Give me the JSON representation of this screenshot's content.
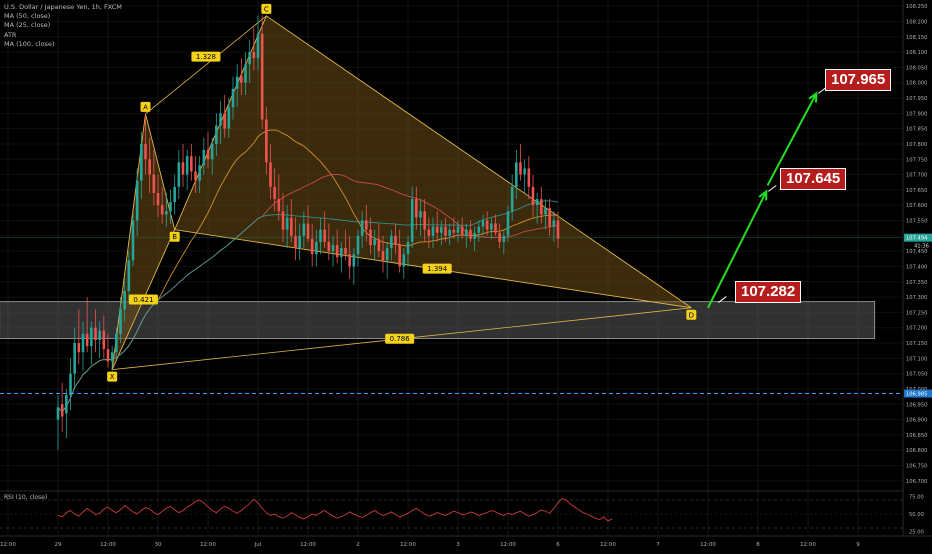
{
  "legend": {
    "symbol": "U.S. Dollar / Japanese Yen, 1h, FXCM",
    "ma50": "MA (50, close)",
    "ma25": "MA (25, close)",
    "atr": "ATR",
    "ma100": "MA (100, close)"
  },
  "rsi_label": "RSI (10, close)",
  "colors": {
    "background": "#000000",
    "bull": "#26a69a",
    "bear": "#ef5350",
    "pattern_stroke": "#e0b84a",
    "pattern_fill": "#6b4e16",
    "projection_arrow": "#22e022",
    "callout": "#b71c1c",
    "support_line": "#3aa0ff",
    "rsi_line": "#e04040",
    "zone_fill": "#5a5a5a"
  },
  "callouts": [
    {
      "name": "target-callout-107-965",
      "text": "107.965"
    },
    {
      "name": "target-callout-107-645",
      "text": "107.645"
    },
    {
      "name": "target-callout-107-282",
      "text": "107.282"
    }
  ],
  "chart_data": {
    "type": "candlestick",
    "title": "U.S. Dollar / Japanese Yen, 1h, FXCM",
    "y_ticks": [
      "108.250",
      "108.200",
      "108.150",
      "108.100",
      "108.050",
      "108.000",
      "107.950",
      "107.900",
      "107.850",
      "107.800",
      "107.750",
      "107.700",
      "107.650",
      "107.600",
      "107.550",
      "107.500",
      "107.450",
      "107.400",
      "107.350",
      "107.300",
      "107.250",
      "107.200",
      "107.150",
      "107.100",
      "107.050",
      "107.000",
      "106.950",
      "106.900",
      "106.850",
      "106.800",
      "106.750",
      "106.700"
    ],
    "ylim": [
      106.67,
      108.27
    ],
    "x_ticks": [
      {
        "label": "12:00",
        "t": -12
      },
      {
        "label": "29",
        "t": 0
      },
      {
        "label": "12:00",
        "t": 12
      },
      {
        "label": "30",
        "t": 24
      },
      {
        "label": "12:00",
        "t": 36
      },
      {
        "label": "Jul",
        "t": 48
      },
      {
        "label": "12:00",
        "t": 60
      },
      {
        "label": "2",
        "t": 72
      },
      {
        "label": "12:00",
        "t": 84
      },
      {
        "label": "3",
        "t": 96
      },
      {
        "label": "12:00",
        "t": 108
      },
      {
        "label": "6",
        "t": 120
      },
      {
        "label": "12:00",
        "t": 132
      },
      {
        "label": "7",
        "t": 144
      },
      {
        "label": "12:00",
        "t": 156
      },
      {
        "label": "8",
        "t": 168
      },
      {
        "label": "12:00",
        "t": 180
      },
      {
        "label": "9",
        "t": 192
      }
    ],
    "last_price": "107.494",
    "countdown": "41:36",
    "support_level": "106.985",
    "harmonic_pattern": {
      "points": [
        {
          "label": "X",
          "t": 13,
          "price": 107.063
        },
        {
          "label": "A",
          "t": 21,
          "price": 107.898
        },
        {
          "label": "B",
          "t": 28,
          "price": 107.52
        },
        {
          "label": "C",
          "t": 50,
          "price": 108.218
        },
        {
          "label": "D",
          "t": 152,
          "price": 107.265
        }
      ],
      "ratios": [
        {
          "label": "1.328",
          "t": 35.5,
          "price": 108.085
        },
        {
          "label": "0.421",
          "t": 20.5,
          "price": 107.292
        },
        {
          "label": "1.394",
          "t": 91,
          "price": 107.393
        },
        {
          "label": "0.786",
          "t": 82,
          "price": 107.164
        }
      ]
    },
    "zone": {
      "t_start": -14,
      "t_end": 196,
      "top": 107.285,
      "bottom": 107.165
    },
    "projection": [
      {
        "t": 157,
        "price": 107.282
      },
      {
        "t": 170,
        "price": 107.645
      },
      {
        "t": 182,
        "price": 107.965
      }
    ],
    "rsi": {
      "ylim": [
        20,
        80
      ],
      "ticks": [
        "75.00",
        "50.00",
        "25.00"
      ],
      "levels": [
        70,
        30
      ],
      "values": [
        48,
        46,
        52,
        55,
        50,
        47,
        53,
        58,
        54,
        49,
        51,
        57,
        60,
        55,
        52,
        56,
        62,
        58,
        53,
        50,
        55,
        59,
        57,
        52,
        49,
        54,
        58,
        61,
        56,
        52,
        55,
        60,
        63,
        68,
        70,
        66,
        60,
        55,
        52,
        57,
        61,
        58,
        54,
        51,
        55,
        60,
        65,
        71,
        66,
        58,
        52,
        48,
        50,
        46,
        44,
        47,
        52,
        49,
        45,
        43,
        46,
        50,
        48,
        52,
        55,
        51,
        47,
        44,
        46,
        49,
        53,
        50,
        47,
        45,
        48,
        52,
        55,
        51,
        48,
        50,
        53,
        49,
        46,
        48,
        51,
        55,
        58,
        54,
        50,
        47,
        49,
        52,
        50,
        48,
        51,
        54,
        52,
        49,
        50,
        53,
        51,
        48,
        50,
        52,
        55,
        53,
        50,
        48,
        51,
        49,
        52,
        54,
        50,
        47,
        49,
        52,
        56,
        54,
        51,
        58,
        66,
        72,
        70,
        64,
        60,
        56,
        52,
        50,
        47,
        44,
        42,
        46,
        40,
        43
      ]
    },
    "candles": [
      {
        "o": 106.9,
        "h": 106.98,
        "l": 106.8,
        "c": 106.94
      },
      {
        "o": 106.95,
        "h": 107.02,
        "l": 106.86,
        "c": 106.91
      },
      {
        "o": 106.92,
        "h": 107.0,
        "l": 106.84,
        "c": 106.98
      },
      {
        "o": 106.98,
        "h": 107.1,
        "l": 106.93,
        "c": 107.05
      },
      {
        "o": 107.05,
        "h": 107.2,
        "l": 107.0,
        "c": 107.15
      },
      {
        "o": 107.15,
        "h": 107.26,
        "l": 107.08,
        "c": 107.12
      },
      {
        "o": 107.12,
        "h": 107.22,
        "l": 107.06,
        "c": 107.18
      },
      {
        "o": 107.18,
        "h": 107.3,
        "l": 107.12,
        "c": 107.14
      },
      {
        "o": 107.14,
        "h": 107.22,
        "l": 107.08,
        "c": 107.2
      },
      {
        "o": 107.2,
        "h": 107.26,
        "l": 107.12,
        "c": 107.16
      },
      {
        "o": 107.16,
        "h": 107.22,
        "l": 107.1,
        "c": 107.19
      },
      {
        "o": 107.19,
        "h": 107.24,
        "l": 107.1,
        "c": 107.13
      },
      {
        "o": 107.13,
        "h": 107.18,
        "l": 107.07,
        "c": 107.09
      },
      {
        "o": 107.09,
        "h": 107.14,
        "l": 107.06,
        "c": 107.12
      },
      {
        "o": 107.12,
        "h": 107.2,
        "l": 107.1,
        "c": 107.18
      },
      {
        "o": 107.18,
        "h": 107.3,
        "l": 107.15,
        "c": 107.26
      },
      {
        "o": 107.26,
        "h": 107.36,
        "l": 107.22,
        "c": 107.32
      },
      {
        "o": 107.32,
        "h": 107.45,
        "l": 107.28,
        "c": 107.42
      },
      {
        "o": 107.42,
        "h": 107.58,
        "l": 107.4,
        "c": 107.55
      },
      {
        "o": 107.55,
        "h": 107.72,
        "l": 107.5,
        "c": 107.68
      },
      {
        "o": 107.68,
        "h": 107.84,
        "l": 107.62,
        "c": 107.8
      },
      {
        "o": 107.8,
        "h": 107.9,
        "l": 107.7,
        "c": 107.75
      },
      {
        "o": 107.75,
        "h": 107.82,
        "l": 107.64,
        "c": 107.7
      },
      {
        "o": 107.7,
        "h": 107.78,
        "l": 107.6,
        "c": 107.64
      },
      {
        "o": 107.64,
        "h": 107.7,
        "l": 107.56,
        "c": 107.6
      },
      {
        "o": 107.6,
        "h": 107.66,
        "l": 107.54,
        "c": 107.57
      },
      {
        "o": 107.57,
        "h": 107.64,
        "l": 107.53,
        "c": 107.58
      },
      {
        "o": 107.58,
        "h": 107.65,
        "l": 107.54,
        "c": 107.61
      },
      {
        "o": 107.61,
        "h": 107.7,
        "l": 107.57,
        "c": 107.66
      },
      {
        "o": 107.66,
        "h": 107.78,
        "l": 107.62,
        "c": 107.74
      },
      {
        "o": 107.74,
        "h": 107.8,
        "l": 107.66,
        "c": 107.7
      },
      {
        "o": 107.7,
        "h": 107.78,
        "l": 107.65,
        "c": 107.76
      },
      {
        "o": 107.76,
        "h": 107.8,
        "l": 107.68,
        "c": 107.71
      },
      {
        "o": 107.71,
        "h": 107.76,
        "l": 107.64,
        "c": 107.68
      },
      {
        "o": 107.68,
        "h": 107.76,
        "l": 107.64,
        "c": 107.73
      },
      {
        "o": 107.73,
        "h": 107.82,
        "l": 107.7,
        "c": 107.78
      },
      {
        "o": 107.78,
        "h": 107.84,
        "l": 107.72,
        "c": 107.75
      },
      {
        "o": 107.75,
        "h": 107.82,
        "l": 107.7,
        "c": 107.8
      },
      {
        "o": 107.8,
        "h": 107.9,
        "l": 107.76,
        "c": 107.86
      },
      {
        "o": 107.86,
        "h": 107.94,
        "l": 107.8,
        "c": 107.9
      },
      {
        "o": 107.9,
        "h": 107.96,
        "l": 107.82,
        "c": 107.85
      },
      {
        "o": 107.85,
        "h": 107.95,
        "l": 107.82,
        "c": 107.92
      },
      {
        "o": 107.92,
        "h": 108.02,
        "l": 107.88,
        "c": 107.98
      },
      {
        "o": 107.98,
        "h": 108.06,
        "l": 107.92,
        "c": 108.02
      },
      {
        "o": 108.02,
        "h": 108.08,
        "l": 107.96,
        "c": 108.0
      },
      {
        "o": 108.0,
        "h": 108.1,
        "l": 107.96,
        "c": 108.06
      },
      {
        "o": 108.06,
        "h": 108.14,
        "l": 108.0,
        "c": 108.1
      },
      {
        "o": 108.1,
        "h": 108.18,
        "l": 108.04,
        "c": 108.08
      },
      {
        "o": 108.08,
        "h": 108.22,
        "l": 108.04,
        "c": 108.16
      },
      {
        "o": 108.16,
        "h": 108.22,
        "l": 107.85,
        "c": 107.88
      },
      {
        "o": 107.88,
        "h": 107.92,
        "l": 107.7,
        "c": 107.74
      },
      {
        "o": 107.74,
        "h": 107.8,
        "l": 107.62,
        "c": 107.66
      },
      {
        "o": 107.66,
        "h": 107.72,
        "l": 107.58,
        "c": 107.62
      },
      {
        "o": 107.62,
        "h": 107.7,
        "l": 107.55,
        "c": 107.58
      },
      {
        "o": 107.58,
        "h": 107.64,
        "l": 107.48,
        "c": 107.52
      },
      {
        "o": 107.52,
        "h": 107.6,
        "l": 107.46,
        "c": 107.56
      },
      {
        "o": 107.56,
        "h": 107.62,
        "l": 107.48,
        "c": 107.5
      },
      {
        "o": 107.5,
        "h": 107.56,
        "l": 107.42,
        "c": 107.46
      },
      {
        "o": 107.46,
        "h": 107.54,
        "l": 107.42,
        "c": 107.5
      },
      {
        "o": 107.5,
        "h": 107.58,
        "l": 107.46,
        "c": 107.54
      },
      {
        "o": 107.54,
        "h": 107.6,
        "l": 107.48,
        "c": 107.49
      },
      {
        "o": 107.49,
        "h": 107.54,
        "l": 107.4,
        "c": 107.44
      },
      {
        "o": 107.44,
        "h": 107.52,
        "l": 107.4,
        "c": 107.48
      },
      {
        "o": 107.48,
        "h": 107.56,
        "l": 107.44,
        "c": 107.52
      },
      {
        "o": 107.52,
        "h": 107.58,
        "l": 107.46,
        "c": 107.48
      },
      {
        "o": 107.48,
        "h": 107.54,
        "l": 107.42,
        "c": 107.45
      },
      {
        "o": 107.45,
        "h": 107.5,
        "l": 107.4,
        "c": 107.47
      },
      {
        "o": 107.47,
        "h": 107.52,
        "l": 107.41,
        "c": 107.43
      },
      {
        "o": 107.43,
        "h": 107.48,
        "l": 107.38,
        "c": 107.46
      },
      {
        "o": 107.46,
        "h": 107.52,
        "l": 107.42,
        "c": 107.44
      },
      {
        "o": 107.44,
        "h": 107.5,
        "l": 107.36,
        "c": 107.4
      },
      {
        "o": 107.4,
        "h": 107.46,
        "l": 107.34,
        "c": 107.44
      },
      {
        "o": 107.44,
        "h": 107.52,
        "l": 107.4,
        "c": 107.5
      },
      {
        "o": 107.5,
        "h": 107.58,
        "l": 107.46,
        "c": 107.55
      },
      {
        "o": 107.55,
        "h": 107.6,
        "l": 107.48,
        "c": 107.52
      },
      {
        "o": 107.52,
        "h": 107.56,
        "l": 107.44,
        "c": 107.47
      },
      {
        "o": 107.47,
        "h": 107.52,
        "l": 107.42,
        "c": 107.49
      },
      {
        "o": 107.49,
        "h": 107.54,
        "l": 107.43,
        "c": 107.45
      },
      {
        "o": 107.45,
        "h": 107.5,
        "l": 107.38,
        "c": 107.42
      },
      {
        "o": 107.42,
        "h": 107.48,
        "l": 107.36,
        "c": 107.46
      },
      {
        "o": 107.46,
        "h": 107.52,
        "l": 107.42,
        "c": 107.5
      },
      {
        "o": 107.5,
        "h": 107.54,
        "l": 107.44,
        "c": 107.47
      },
      {
        "o": 107.47,
        "h": 107.52,
        "l": 107.38,
        "c": 107.4
      },
      {
        "o": 107.4,
        "h": 107.46,
        "l": 107.36,
        "c": 107.44
      },
      {
        "o": 107.44,
        "h": 107.5,
        "l": 107.4,
        "c": 107.48
      },
      {
        "o": 107.48,
        "h": 107.66,
        "l": 107.46,
        "c": 107.62
      },
      {
        "o": 107.62,
        "h": 107.66,
        "l": 107.52,
        "c": 107.56
      },
      {
        "o": 107.56,
        "h": 107.62,
        "l": 107.5,
        "c": 107.58
      },
      {
        "o": 107.58,
        "h": 107.62,
        "l": 107.48,
        "c": 107.52
      },
      {
        "o": 107.52,
        "h": 107.56,
        "l": 107.46,
        "c": 107.5
      },
      {
        "o": 107.5,
        "h": 107.56,
        "l": 107.46,
        "c": 107.53
      },
      {
        "o": 107.53,
        "h": 107.58,
        "l": 107.48,
        "c": 107.51
      },
      {
        "o": 107.51,
        "h": 107.55,
        "l": 107.47,
        "c": 107.53
      },
      {
        "o": 107.53,
        "h": 107.56,
        "l": 107.48,
        "c": 107.5
      },
      {
        "o": 107.5,
        "h": 107.54,
        "l": 107.47,
        "c": 107.52
      },
      {
        "o": 107.52,
        "h": 107.56,
        "l": 107.49,
        "c": 107.51
      },
      {
        "o": 107.51,
        "h": 107.55,
        "l": 107.48,
        "c": 107.53
      },
      {
        "o": 107.53,
        "h": 107.56,
        "l": 107.49,
        "c": 107.5
      },
      {
        "o": 107.5,
        "h": 107.54,
        "l": 107.46,
        "c": 107.52
      },
      {
        "o": 107.52,
        "h": 107.55,
        "l": 107.48,
        "c": 107.49
      },
      {
        "o": 107.49,
        "h": 107.53,
        "l": 107.45,
        "c": 107.51
      },
      {
        "o": 107.51,
        "h": 107.55,
        "l": 107.48,
        "c": 107.53
      },
      {
        "o": 107.53,
        "h": 107.57,
        "l": 107.5,
        "c": 107.55
      },
      {
        "o": 107.55,
        "h": 107.58,
        "l": 107.5,
        "c": 107.52
      },
      {
        "o": 107.52,
        "h": 107.56,
        "l": 107.49,
        "c": 107.54
      },
      {
        "o": 107.54,
        "h": 107.57,
        "l": 107.5,
        "c": 107.51
      },
      {
        "o": 107.51,
        "h": 107.54,
        "l": 107.46,
        "c": 107.48
      },
      {
        "o": 107.48,
        "h": 107.52,
        "l": 107.44,
        "c": 107.5
      },
      {
        "o": 107.5,
        "h": 107.6,
        "l": 107.48,
        "c": 107.58
      },
      {
        "o": 107.58,
        "h": 107.7,
        "l": 107.55,
        "c": 107.66
      },
      {
        "o": 107.66,
        "h": 107.78,
        "l": 107.62,
        "c": 107.74
      },
      {
        "o": 107.74,
        "h": 107.8,
        "l": 107.68,
        "c": 107.7
      },
      {
        "o": 107.7,
        "h": 107.75,
        "l": 107.64,
        "c": 107.72
      },
      {
        "o": 107.72,
        "h": 107.76,
        "l": 107.62,
        "c": 107.66
      },
      {
        "o": 107.66,
        "h": 107.7,
        "l": 107.56,
        "c": 107.6
      },
      {
        "o": 107.6,
        "h": 107.64,
        "l": 107.54,
        "c": 107.62
      },
      {
        "o": 107.62,
        "h": 107.66,
        "l": 107.54,
        "c": 107.57
      },
      {
        "o": 107.57,
        "h": 107.62,
        "l": 107.52,
        "c": 107.59
      },
      {
        "o": 107.59,
        "h": 107.62,
        "l": 107.5,
        "c": 107.53
      },
      {
        "o": 107.53,
        "h": 107.58,
        "l": 107.48,
        "c": 107.55
      },
      {
        "o": 107.55,
        "h": 107.58,
        "l": 107.46,
        "c": 107.49
      }
    ]
  }
}
